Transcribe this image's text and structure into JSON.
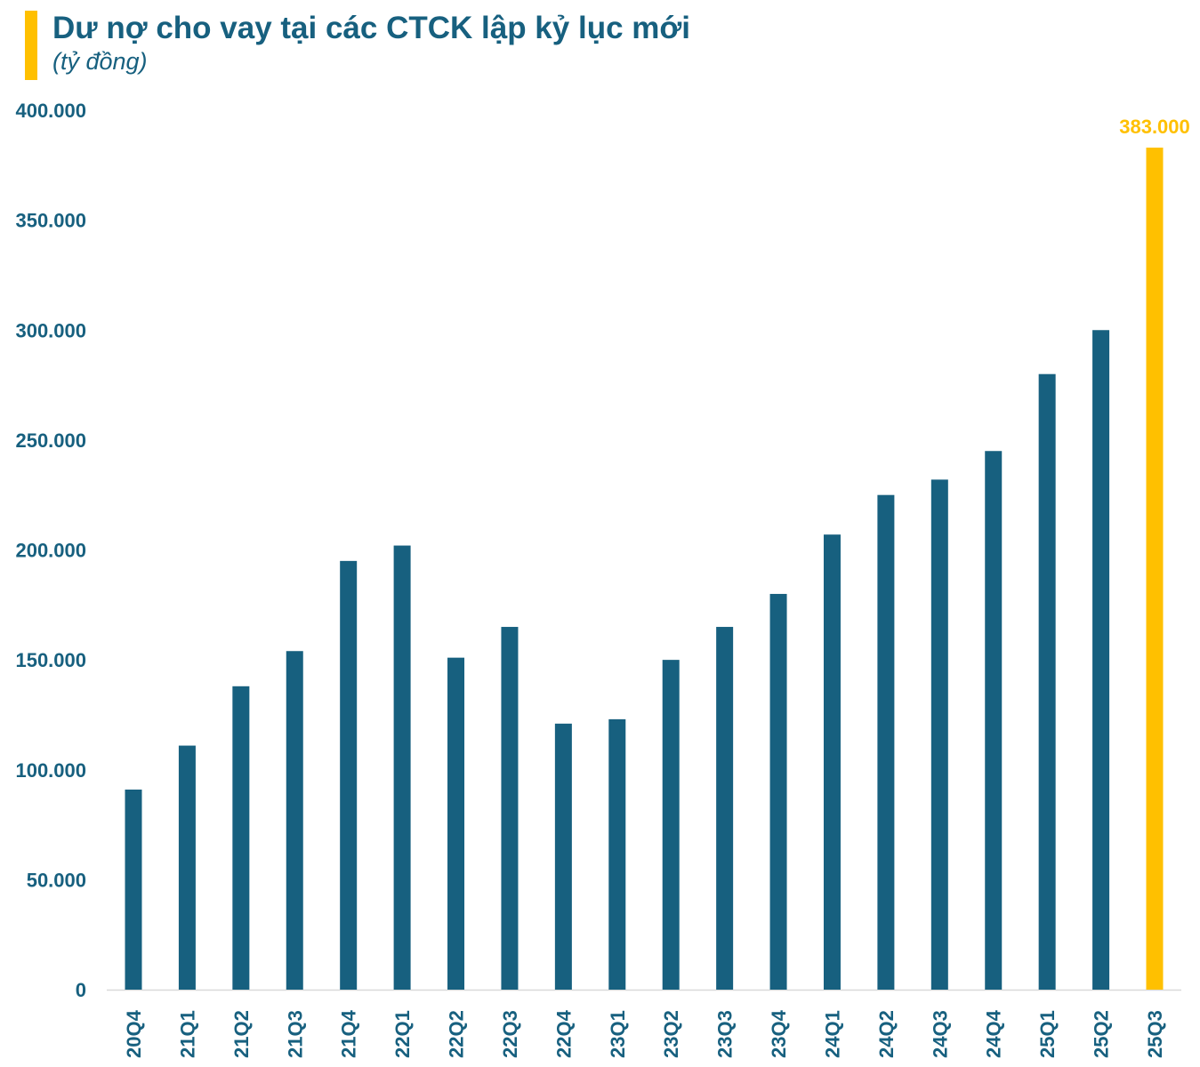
{
  "chart_data": {
    "type": "bar",
    "title": "Dư nợ cho vay tại các CTCK lập kỷ lục mới",
    "subtitle": "(tỷ đồng)",
    "categories": [
      "20Q4",
      "21Q1",
      "21Q2",
      "21Q3",
      "21Q4",
      "22Q1",
      "22Q2",
      "22Q3",
      "22Q4",
      "23Q1",
      "23Q2",
      "23Q3",
      "23Q4",
      "24Q1",
      "24Q2",
      "24Q3",
      "24Q4",
      "25Q1",
      "25Q2",
      "25Q3"
    ],
    "values": [
      91000,
      111000,
      138000,
      154000,
      195000,
      202000,
      151000,
      165000,
      121000,
      123000,
      150000,
      165000,
      180000,
      207000,
      225000,
      232000,
      245000,
      280000,
      300000,
      383000
    ],
    "ylim": [
      0,
      400000
    ],
    "yticks": [
      0,
      50000,
      100000,
      150000,
      200000,
      250000,
      300000,
      350000,
      400000
    ],
    "ytick_labels": [
      "0",
      "50.000",
      "100.000",
      "150.000",
      "200.000",
      "250.000",
      "300.000",
      "350.000",
      "400.000"
    ],
    "data_labels": [
      {
        "category": "25Q3",
        "text": "383.000"
      }
    ],
    "grid": false,
    "colors": {
      "bar": "#17607F",
      "highlight": "#FFC000",
      "text": "#17607F",
      "axis": "#D9D9D9"
    },
    "highlight_category": "25Q3"
  }
}
